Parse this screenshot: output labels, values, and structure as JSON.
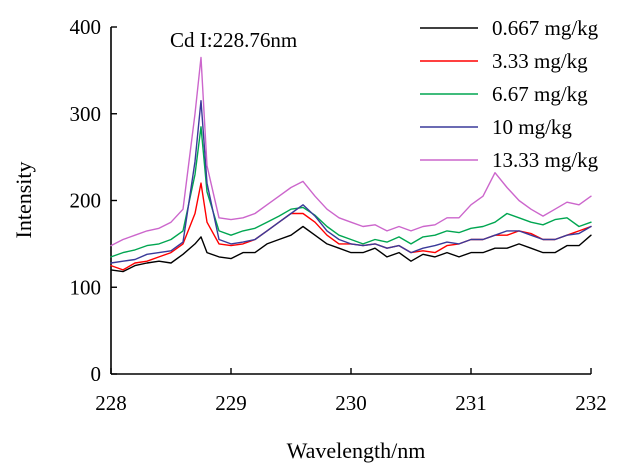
{
  "chart_data": {
    "type": "line",
    "title": "",
    "xlabel": "Wavelength/nm",
    "ylabel": "Intensity",
    "xlim": [
      228,
      232
    ],
    "ylim": [
      0,
      400
    ],
    "xticks": [
      "228",
      "229",
      "230",
      "231",
      "232"
    ],
    "yticks": [
      "0",
      "100",
      "200",
      "300",
      "400"
    ],
    "grid": false,
    "legend_position": "top-right",
    "annotation": "Cd I:228.76nm",
    "x": [
      228.0,
      228.1,
      228.2,
      228.3,
      228.4,
      228.5,
      228.6,
      228.7,
      228.75,
      228.8,
      228.9,
      229.0,
      229.1,
      229.2,
      229.3,
      229.4,
      229.5,
      229.6,
      229.7,
      229.8,
      229.9,
      230.0,
      230.1,
      230.2,
      230.3,
      230.4,
      230.5,
      230.6,
      230.7,
      230.8,
      230.9,
      231.0,
      231.1,
      231.2,
      231.3,
      231.4,
      231.5,
      231.6,
      231.7,
      231.8,
      231.9,
      232.0
    ],
    "series": [
      {
        "name": "0.667 mg/kg",
        "color": "#000000",
        "values": [
          120,
          118,
          125,
          128,
          130,
          128,
          138,
          150,
          158,
          140,
          135,
          133,
          140,
          140,
          150,
          155,
          160,
          170,
          160,
          150,
          145,
          140,
          140,
          145,
          135,
          140,
          130,
          138,
          135,
          140,
          135,
          140,
          140,
          145,
          145,
          150,
          145,
          140,
          140,
          148,
          148,
          160
        ]
      },
      {
        "name": "3.33 mg/kg",
        "color": "#ff0000",
        "values": [
          125,
          120,
          128,
          130,
          135,
          140,
          150,
          185,
          220,
          175,
          150,
          148,
          150,
          155,
          165,
          175,
          185,
          185,
          175,
          160,
          150,
          150,
          148,
          150,
          145,
          148,
          140,
          142,
          140,
          148,
          150,
          155,
          155,
          160,
          160,
          165,
          162,
          155,
          155,
          160,
          165,
          170
        ]
      },
      {
        "name": "6.67 mg/kg",
        "color": "#00a651",
        "values": [
          135,
          140,
          143,
          148,
          150,
          155,
          165,
          230,
          285,
          210,
          165,
          160,
          165,
          168,
          175,
          182,
          190,
          192,
          183,
          170,
          160,
          155,
          150,
          155,
          152,
          158,
          150,
          158,
          160,
          165,
          163,
          168,
          170,
          175,
          185,
          180,
          175,
          172,
          178,
          180,
          170,
          175
        ]
      },
      {
        "name": "10 mg/kg",
        "color": "#3a3a9a",
        "values": [
          128,
          130,
          132,
          138,
          140,
          142,
          152,
          245,
          315,
          220,
          155,
          150,
          152,
          155,
          165,
          175,
          185,
          195,
          182,
          165,
          155,
          150,
          148,
          150,
          145,
          148,
          140,
          145,
          148,
          152,
          150,
          155,
          155,
          160,
          165,
          165,
          160,
          155,
          155,
          160,
          162,
          170
        ]
      },
      {
        "name": "13.33 mg/kg",
        "color": "#cc66cc",
        "values": [
          148,
          155,
          160,
          165,
          168,
          175,
          190,
          300,
          365,
          240,
          180,
          178,
          180,
          185,
          195,
          205,
          215,
          222,
          205,
          190,
          180,
          175,
          170,
          172,
          165,
          170,
          165,
          170,
          172,
          180,
          180,
          195,
          205,
          232,
          215,
          200,
          190,
          182,
          190,
          198,
          195,
          205
        ]
      }
    ]
  }
}
